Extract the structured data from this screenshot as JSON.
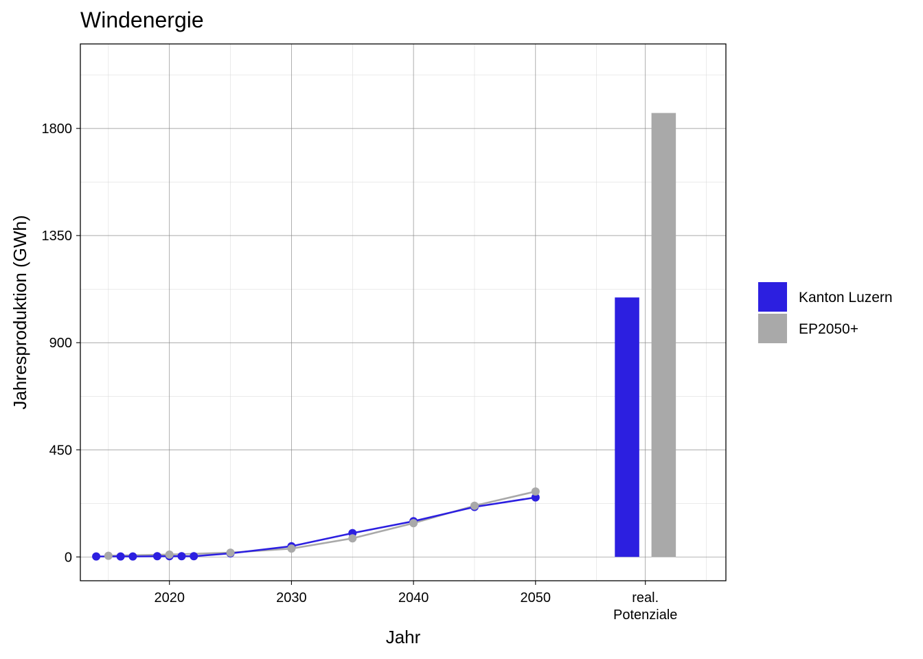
{
  "chart_data": {
    "type": "line",
    "title": "Windenergie",
    "xlabel": "Jahr",
    "ylabel": "Jahresproduktion (GWh)",
    "xlim": [
      2012.7,
      2065.6
    ],
    "ylim": [
      -100,
      2155
    ],
    "x_ticks": [
      {
        "x": 2020,
        "label": "2020"
      },
      {
        "x": 2030,
        "label": "2030"
      },
      {
        "x": 2040,
        "label": "2040"
      },
      {
        "x": 2050,
        "label": "2050"
      }
    ],
    "x_category_tick": {
      "lines": [
        "real.",
        "Potenziale"
      ]
    },
    "y_ticks": [
      0,
      450,
      900,
      1350,
      1800
    ],
    "grid": true,
    "legend_position": "right",
    "series": [
      {
        "name": "Kanton Luzern",
        "color": "#2c1fe0",
        "x": [
          2014,
          2016,
          2017,
          2019,
          2020,
          2021,
          2022,
          2025,
          2030,
          2035,
          2040,
          2045,
          2050
        ],
        "values": [
          2,
          2,
          2,
          3,
          3,
          3,
          3,
          15,
          45,
          100,
          150,
          210,
          250
        ]
      },
      {
        "name": "EP2050+",
        "color": "#a9a9a9",
        "x": [
          2015,
          2020,
          2025,
          2030,
          2035,
          2040,
          2045,
          2050
        ],
        "values": [
          5,
          10,
          18,
          35,
          78,
          142,
          215,
          275
        ]
      }
    ],
    "potential_bars": [
      {
        "series": "Kanton Luzern",
        "value": 1090,
        "color": "#2c1fe0"
      },
      {
        "series": "EP2050+",
        "value": 1865,
        "color": "#a9a9a9"
      }
    ]
  }
}
